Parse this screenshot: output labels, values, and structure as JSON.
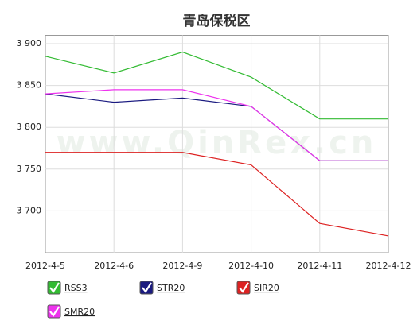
{
  "chart_data": {
    "type": "line",
    "title": "青岛保税区",
    "watermark": "www.QinRex.cn",
    "categories": [
      "2012-4-5",
      "2012-4-6",
      "2012-4-9",
      "2012-4-10",
      "2012-4-11",
      "2012-4-12"
    ],
    "series": [
      {
        "name": "RSS3",
        "color": "#33bb33",
        "values": [
          3885,
          3865,
          3890,
          3860,
          3810,
          3810
        ]
      },
      {
        "name": "STR20",
        "color": "#1a1a80",
        "values": [
          3840,
          3830,
          3835,
          3825,
          3760,
          3760
        ]
      },
      {
        "name": "SIR20",
        "color": "#dd2222",
        "values": [
          3770,
          3770,
          3770,
          3755,
          3685,
          3670
        ]
      },
      {
        "name": "SMR20",
        "color": "#ee33ee",
        "values": [
          3840,
          3845,
          3845,
          3825,
          3760,
          3760
        ]
      }
    ],
    "ylim": [
      3650,
      3910
    ],
    "yticks": [
      {
        "value": 3700,
        "label": "3 700"
      },
      {
        "value": 3750,
        "label": "3 750"
      },
      {
        "value": 3800,
        "label": "3 800"
      },
      {
        "value": 3850,
        "label": "3 850"
      },
      {
        "value": 3900,
        "label": "3 900"
      }
    ],
    "grid": true
  }
}
